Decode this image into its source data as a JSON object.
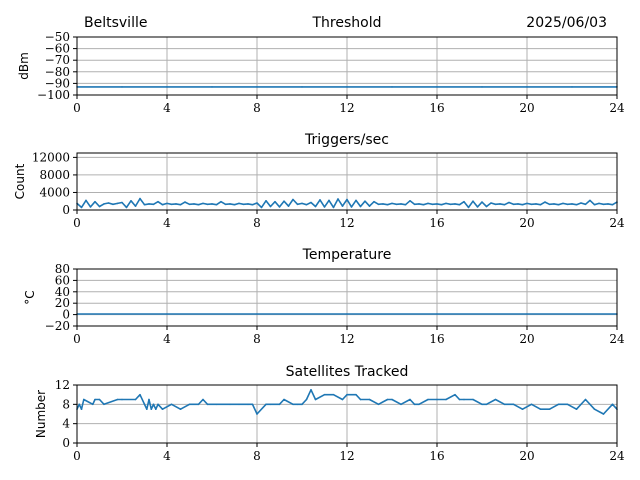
{
  "header": {
    "location": "Beltsville",
    "date": "2025/06/03"
  },
  "colors": {
    "series": "#1f77b4",
    "grid": "#b0b0b0",
    "axis": "#000000"
  },
  "chart_data": [
    {
      "type": "line",
      "title": "Threshold",
      "ylabel": "dBm",
      "xlabel": "",
      "xlim": [
        0,
        24
      ],
      "ylim": [
        -100,
        -50
      ],
      "x_ticks": [
        0,
        4,
        8,
        12,
        16,
        20,
        24
      ],
      "y_ticks": [
        -50,
        -60,
        -70,
        -80,
        -90,
        -100
      ],
      "y_tick_labels": [
        "−50",
        "−60",
        "−70",
        "−80",
        "−90",
        "−100"
      ],
      "grid": true,
      "series": [
        {
          "x": [
            0,
            2,
            4,
            6,
            8,
            10,
            12,
            14,
            16,
            18,
            20,
            22,
            24
          ],
          "values": [
            -93,
            -93,
            -93,
            -93,
            -93,
            -93,
            -93,
            -93,
            -93,
            -93,
            -93,
            -93,
            -93
          ]
        }
      ]
    },
    {
      "type": "line",
      "title": "Triggers/sec",
      "ylabel": "Count",
      "xlabel": "",
      "xlim": [
        0,
        24
      ],
      "ylim": [
        0,
        13000
      ],
      "x_ticks": [
        0,
        4,
        8,
        12,
        16,
        20,
        24
      ],
      "y_ticks": [
        0,
        4000,
        8000,
        12000
      ],
      "y_tick_labels": [
        "0",
        "4000",
        "8000",
        "12000"
      ],
      "grid": true,
      "series": [
        {
          "x": [
            0,
            0.2,
            0.4,
            0.6,
            0.8,
            1.0,
            1.2,
            1.4,
            1.6,
            1.8,
            2.0,
            2.2,
            2.4,
            2.6,
            2.8,
            3.0,
            3.2,
            3.4,
            3.6,
            3.8,
            4.0,
            4.2,
            4.4,
            4.6,
            4.8,
            5.0,
            5.2,
            5.4,
            5.6,
            5.8,
            6.0,
            6.2,
            6.4,
            6.6,
            6.8,
            7.0,
            7.2,
            7.4,
            7.6,
            7.8,
            8.0,
            8.2,
            8.4,
            8.6,
            8.8,
            9.0,
            9.2,
            9.4,
            9.6,
            9.8,
            10.0,
            10.2,
            10.4,
            10.6,
            10.8,
            11.0,
            11.2,
            11.4,
            11.6,
            11.8,
            12.0,
            12.2,
            12.4,
            12.6,
            12.8,
            13.0,
            13.2,
            13.4,
            13.6,
            13.8,
            14.0,
            14.2,
            14.4,
            14.6,
            14.8,
            15.0,
            15.2,
            15.4,
            15.6,
            15.8,
            16.0,
            16.2,
            16.4,
            16.6,
            16.8,
            17.0,
            17.2,
            17.4,
            17.6,
            17.8,
            18.0,
            18.2,
            18.4,
            18.6,
            18.8,
            19.0,
            19.2,
            19.4,
            19.6,
            19.8,
            20.0,
            20.2,
            20.4,
            20.6,
            20.8,
            21.0,
            21.2,
            21.4,
            21.6,
            21.8,
            22.0,
            22.2,
            22.4,
            22.6,
            22.8,
            23.0,
            23.2,
            23.4,
            23.6,
            23.8,
            24.0
          ],
          "values": [
            1500,
            600,
            2200,
            700,
            1900,
            800,
            1400,
            1600,
            1300,
            1500,
            1700,
            600,
            2100,
            900,
            2600,
            1200,
            1400,
            1300,
            1900,
            1200,
            1500,
            1300,
            1400,
            1200,
            1800,
            1300,
            1400,
            1200,
            1500,
            1300,
            1400,
            1200,
            1900,
            1300,
            1400,
            1200,
            1500,
            1300,
            1400,
            1200,
            1600,
            600,
            2100,
            800,
            1900,
            700,
            2000,
            900,
            2400,
            1300,
            1500,
            1200,
            1700,
            800,
            2300,
            700,
            2200,
            600,
            2500,
            900,
            2400,
            700,
            2200,
            800,
            2000,
            900,
            1900,
            1300,
            1400,
            1200,
            1500,
            1300,
            1400,
            1200,
            2100,
            1300,
            1400,
            1200,
            1500,
            1300,
            1400,
            1200,
            1500,
            1300,
            1400,
            1200,
            1900,
            600,
            2000,
            700,
            1800,
            800,
            1600,
            1300,
            1400,
            1200,
            1700,
            1300,
            1400,
            1200,
            1500,
            1300,
            1400,
            1200,
            1800,
            1300,
            1400,
            1200,
            1500,
            1300,
            1400,
            1200,
            1600,
            1300,
            2200,
            1200,
            1500,
            1300,
            1400,
            1200,
            1800
          ]
        }
      ]
    },
    {
      "type": "line",
      "title": "Temperature",
      "ylabel": "°C",
      "xlabel": "",
      "xlim": [
        0,
        24
      ],
      "ylim": [
        -20,
        80
      ],
      "x_ticks": [
        0,
        4,
        8,
        12,
        16,
        20,
        24
      ],
      "y_ticks": [
        80,
        60,
        40,
        20,
        0,
        -20
      ],
      "y_tick_labels": [
        "80",
        "60",
        "40",
        "20",
        "0",
        "−20"
      ],
      "grid": true,
      "series": [
        {
          "x": [
            0,
            4,
            8,
            12,
            16,
            20,
            24
          ],
          "values": [
            1,
            1,
            1,
            1,
            1,
            1,
            1
          ]
        }
      ]
    },
    {
      "type": "line",
      "title": "Satellites Tracked",
      "ylabel": "Number",
      "xlabel": "",
      "xlim": [
        0,
        24
      ],
      "ylim": [
        0,
        12
      ],
      "x_ticks": [
        0,
        4,
        8,
        12,
        16,
        20,
        24
      ],
      "y_ticks": [
        0,
        4,
        8,
        12
      ],
      "y_tick_labels": [
        "0",
        "4",
        "8",
        "12"
      ],
      "grid": true,
      "series": [
        {
          "x": [
            0,
            0.1,
            0.2,
            0.3,
            0.7,
            0.8,
            1.0,
            1.2,
            1.8,
            2.0,
            2.6,
            2.8,
            3.0,
            3.1,
            3.2,
            3.3,
            3.4,
            3.5,
            3.6,
            3.8,
            4.2,
            4.6,
            5.0,
            5.4,
            5.6,
            5.8,
            6.2,
            6.8,
            7.2,
            7.6,
            7.8,
            8.0,
            8.4,
            8.6,
            9.0,
            9.2,
            9.6,
            9.8,
            10.0,
            10.2,
            10.4,
            10.6,
            11.0,
            11.4,
            11.8,
            12.0,
            12.4,
            12.6,
            13.0,
            13.4,
            13.8,
            14.0,
            14.4,
            14.8,
            15.0,
            15.2,
            15.6,
            16.0,
            16.4,
            16.8,
            17.0,
            17.2,
            17.6,
            18.0,
            18.2,
            18.6,
            19.0,
            19.4,
            19.8,
            20.2,
            20.6,
            21.0,
            21.4,
            21.8,
            22.2,
            22.6,
            23.0,
            23.4,
            23.8,
            24.0
          ],
          "values": [
            7,
            8,
            7,
            9,
            8,
            9,
            9,
            8,
            9,
            9,
            9,
            10,
            8,
            7,
            9,
            7,
            8,
            7,
            8,
            7,
            8,
            7,
            8,
            8,
            9,
            8,
            8,
            8,
            8,
            8,
            8,
            6,
            8,
            8,
            8,
            9,
            8,
            8,
            8,
            9,
            11,
            9,
            10,
            10,
            9,
            10,
            10,
            9,
            9,
            8,
            9,
            9,
            8,
            9,
            8,
            8,
            9,
            9,
            9,
            10,
            9,
            9,
            9,
            8,
            8,
            9,
            8,
            8,
            7,
            8,
            7,
            7,
            8,
            8,
            7,
            9,
            7,
            6,
            8,
            7
          ]
        }
      ]
    }
  ]
}
